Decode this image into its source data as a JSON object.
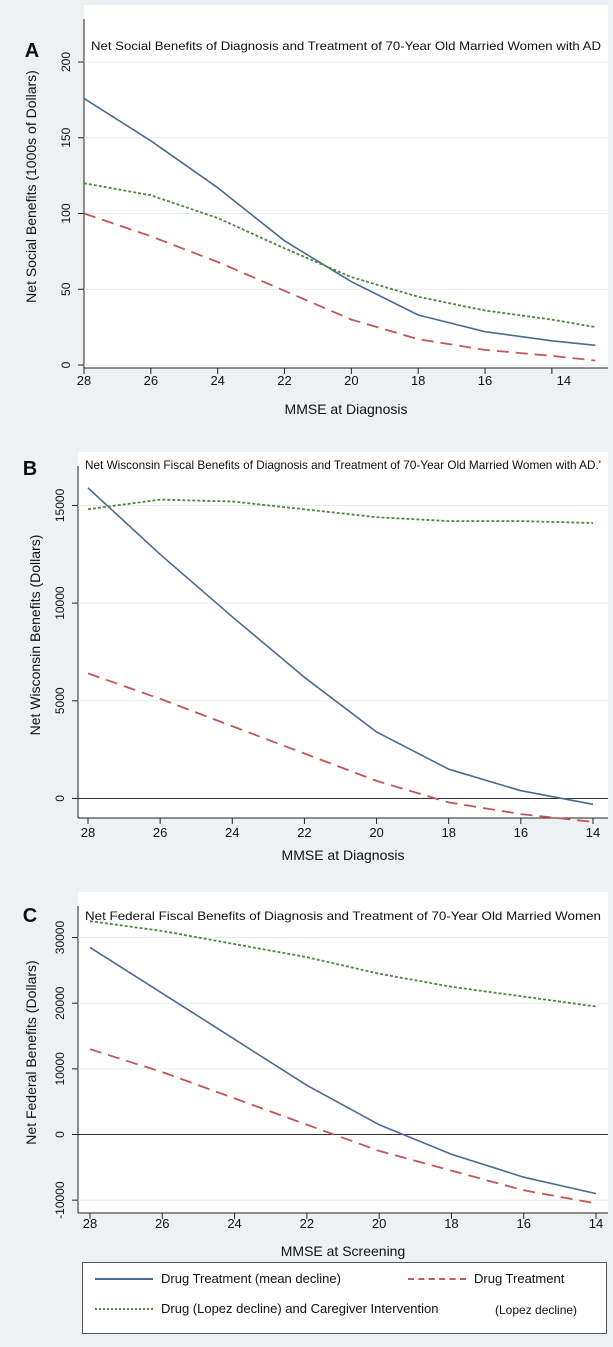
{
  "styles": {
    "mean": {
      "color": "#4a6a94",
      "dash": ""
    },
    "drug": {
      "color": "#c65656",
      "dash": "12,7"
    },
    "lopez": {
      "color": "#4c8a3c",
      "dash": "3,2"
    }
  },
  "legend": {
    "entries": [
      {
        "key": "mean",
        "label": "Drug Treatment (mean decline)"
      },
      {
        "key": "drug",
        "label": "Drug Treatment"
      },
      {
        "key": "lopez",
        "label": "Drug (Lopez decline) and Caregiver Intervention"
      }
    ],
    "note": "(Lopez decline)"
  },
  "chart_data": [
    {
      "type": "line",
      "panel": "A",
      "title": "Net Social Benefits of Diagnosis and Treatment of 70-Year Old Married Women with AD",
      "xlabel": "MMSE at Diagnosis",
      "ylabel": "Net Social Benefits (1000s of Dollars)",
      "x_reversed": true,
      "xlim": [
        28,
        12.5
      ],
      "ylim": [
        0,
        200
      ],
      "x_ticks": [
        28,
        26,
        24,
        22,
        20,
        18,
        16,
        14
      ],
      "x_tick_labels": [
        "28",
        "26",
        "24",
        "22",
        "20",
        "18",
        "16",
        "14"
      ],
      "y_ticks": [
        0,
        50,
        100,
        150,
        200
      ],
      "zero_line": false,
      "series": [
        {
          "key": "mean",
          "x": [
            28,
            26,
            24,
            22,
            20,
            18,
            16,
            14,
            12.7
          ],
          "y": [
            176,
            148,
            117,
            82,
            55,
            33,
            22,
            16,
            13
          ]
        },
        {
          "key": "drug",
          "x": [
            28,
            26,
            24,
            22,
            20,
            18,
            16,
            14,
            12.7
          ],
          "y": [
            100,
            85,
            68,
            49,
            30,
            17,
            10,
            6,
            3
          ]
        },
        {
          "key": "lopez",
          "x": [
            28,
            26,
            24,
            22,
            20,
            18,
            16,
            14,
            12.7
          ],
          "y": [
            120,
            112,
            97,
            77,
            58,
            45,
            36,
            30,
            25
          ]
        }
      ]
    },
    {
      "type": "line",
      "panel": "B",
      "title": "Net Wisconsin Fiscal Benefits of Diagnosis and Treatment of 70-Year Old Married Women with AD.'",
      "xlabel": "MMSE at Diagnosis",
      "ylabel": "Net Wisconsin Benefits (Dollars)",
      "x_reversed": true,
      "xlim": [
        28,
        14
      ],
      "ylim": [
        -1000,
        16200
      ],
      "x_ticks": [
        28,
        26,
        24,
        22,
        20,
        18,
        16,
        14
      ],
      "x_tick_labels": [
        "28",
        "26",
        "24",
        "22",
        "20",
        "18",
        "16",
        "14"
      ],
      "y_ticks": [
        0,
        5000,
        10000,
        15000
      ],
      "zero_line": true,
      "series": [
        {
          "key": "mean",
          "x": [
            28,
            26,
            24,
            22,
            20,
            18,
            16,
            14
          ],
          "y": [
            15900,
            12500,
            9300,
            6200,
            3400,
            1500,
            400,
            -300
          ]
        },
        {
          "key": "drug",
          "x": [
            28,
            26,
            24,
            22,
            20,
            18,
            16,
            14
          ],
          "y": [
            6400,
            5100,
            3700,
            2300,
            900,
            -200,
            -800,
            -1200
          ]
        },
        {
          "key": "lopez",
          "x": [
            28,
            26,
            24,
            22,
            20,
            18,
            16,
            14
          ],
          "y": [
            14800,
            15300,
            15200,
            14800,
            14400,
            14200,
            14200,
            14100
          ]
        }
      ]
    },
    {
      "type": "line",
      "panel": "C",
      "title": "Net Federal Fiscal Benefits of Diagnosis and Treatment of 70-Year Old Married Women",
      "xlabel": "MMSE at Screening",
      "ylabel": "Net Federal Benefits (Dollars)",
      "x_reversed": true,
      "xlim": [
        28,
        14
      ],
      "ylim": [
        -11500,
        34500
      ],
      "x_ticks": [
        28,
        26,
        24,
        22,
        20,
        18,
        16,
        14
      ],
      "x_tick_labels": [
        "28",
        "26",
        "24",
        "22",
        "20",
        "18",
        "16",
        "14"
      ],
      "y_ticks": [
        -10000,
        0,
        10000,
        20000,
        30000
      ],
      "zero_line": true,
      "series": [
        {
          "key": "mean",
          "x": [
            28,
            26,
            24,
            22,
            20,
            18,
            16,
            14
          ],
          "y": [
            28500,
            21500,
            14500,
            7500,
            1500,
            -3000,
            -6500,
            -9000
          ]
        },
        {
          "key": "drug",
          "x": [
            28,
            26,
            24,
            22,
            20,
            18,
            16,
            14
          ],
          "y": [
            13000,
            9500,
            5500,
            1500,
            -2500,
            -5500,
            -8500,
            -10500
          ]
        },
        {
          "key": "lopez",
          "x": [
            28,
            26,
            24,
            22,
            20,
            18,
            16,
            14
          ],
          "y": [
            32500,
            31000,
            29000,
            27000,
            24500,
            22500,
            21000,
            19500
          ]
        }
      ]
    }
  ]
}
